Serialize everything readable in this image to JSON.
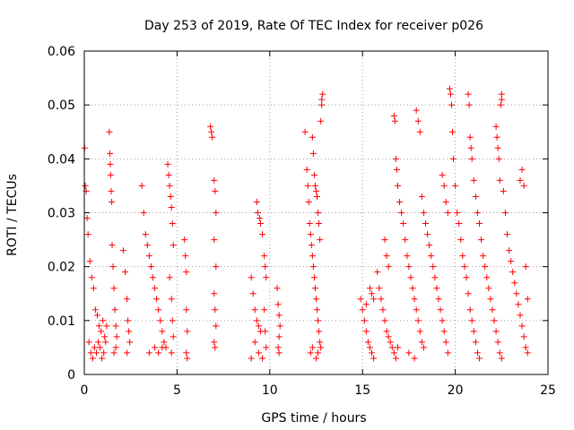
{
  "chart_data": {
    "type": "scatter",
    "title": "Day 253 of 2019, Rate Of TEC Index for receiver p026",
    "xlabel": "GPS time / hours",
    "ylabel": "ROTI / TECUs",
    "xlim": [
      0,
      25
    ],
    "ylim": [
      0,
      0.06
    ],
    "x_ticks": [
      0,
      5,
      10,
      15,
      20,
      25
    ],
    "x_tick_labels": [
      "0",
      "5",
      "10",
      "15",
      "20",
      "25"
    ],
    "y_ticks": [
      0,
      0.01,
      0.02,
      0.03,
      0.04,
      0.05,
      0.06
    ],
    "y_tick_labels": [
      "0",
      "0.01",
      "0.02",
      "0.03",
      "0.04",
      "0.05",
      "0.06"
    ],
    "grid": true,
    "marker": "+",
    "series_color": "#ff0000",
    "points": [
      [
        0.02,
        0.042
      ],
      [
        0.05,
        0.035
      ],
      [
        0.1,
        0.034
      ],
      [
        0.15,
        0.029
      ],
      [
        0.2,
        0.026
      ],
      [
        0.3,
        0.021
      ],
      [
        0.4,
        0.018
      ],
      [
        0.5,
        0.016
      ],
      [
        0.6,
        0.012
      ],
      [
        0.7,
        0.011
      ],
      [
        0.8,
        0.009
      ],
      [
        0.9,
        0.008
      ],
      [
        1.0,
        0.01
      ],
      [
        1.1,
        0.007
      ],
      [
        1.2,
        0.009
      ],
      [
        0.25,
        0.006
      ],
      [
        0.35,
        0.004
      ],
      [
        0.45,
        0.003
      ],
      [
        0.55,
        0.005
      ],
      [
        0.65,
        0.004
      ],
      [
        0.75,
        0.006
      ],
      [
        0.85,
        0.005
      ],
      [
        0.95,
        0.003
      ],
      [
        1.05,
        0.004
      ],
      [
        1.15,
        0.006
      ],
      [
        1.35,
        0.045
      ],
      [
        1.38,
        0.041
      ],
      [
        1.4,
        0.039
      ],
      [
        1.42,
        0.037
      ],
      [
        1.45,
        0.034
      ],
      [
        1.48,
        0.032
      ],
      [
        1.5,
        0.024
      ],
      [
        1.55,
        0.02
      ],
      [
        1.6,
        0.016
      ],
      [
        1.65,
        0.012
      ],
      [
        1.7,
        0.009
      ],
      [
        1.75,
        0.007
      ],
      [
        1.6,
        0.004
      ],
      [
        1.7,
        0.005
      ],
      [
        2.1,
        0.023
      ],
      [
        2.2,
        0.019
      ],
      [
        2.3,
        0.014
      ],
      [
        2.35,
        0.01
      ],
      [
        2.4,
        0.008
      ],
      [
        2.45,
        0.006
      ],
      [
        2.3,
        0.004
      ],
      [
        3.1,
        0.035
      ],
      [
        3.2,
        0.03
      ],
      [
        3.3,
        0.026
      ],
      [
        3.4,
        0.024
      ],
      [
        3.5,
        0.022
      ],
      [
        3.6,
        0.02
      ],
      [
        3.7,
        0.018
      ],
      [
        3.8,
        0.016
      ],
      [
        3.9,
        0.014
      ],
      [
        4.0,
        0.012
      ],
      [
        4.1,
        0.01
      ],
      [
        4.2,
        0.008
      ],
      [
        4.3,
        0.006
      ],
      [
        4.4,
        0.005
      ],
      [
        3.5,
        0.004
      ],
      [
        3.8,
        0.005
      ],
      [
        4.0,
        0.004
      ],
      [
        4.2,
        0.005
      ],
      [
        4.5,
        0.039
      ],
      [
        4.55,
        0.037
      ],
      [
        4.6,
        0.035
      ],
      [
        4.65,
        0.033
      ],
      [
        4.7,
        0.031
      ],
      [
        4.75,
        0.028
      ],
      [
        4.8,
        0.024
      ],
      [
        4.6,
        0.018
      ],
      [
        4.7,
        0.014
      ],
      [
        4.75,
        0.01
      ],
      [
        4.8,
        0.007
      ],
      [
        4.7,
        0.004
      ],
      [
        5.4,
        0.025
      ],
      [
        5.45,
        0.022
      ],
      [
        5.5,
        0.019
      ],
      [
        5.5,
        0.012
      ],
      [
        5.55,
        0.008
      ],
      [
        5.5,
        0.004
      ],
      [
        5.55,
        0.003
      ],
      [
        6.8,
        0.046
      ],
      [
        6.85,
        0.045
      ],
      [
        6.9,
        0.044
      ],
      [
        7.0,
        0.036
      ],
      [
        7.05,
        0.034
      ],
      [
        7.1,
        0.03
      ],
      [
        7.0,
        0.025
      ],
      [
        7.1,
        0.02
      ],
      [
        7.0,
        0.015
      ],
      [
        7.05,
        0.012
      ],
      [
        7.1,
        0.009
      ],
      [
        7.0,
        0.006
      ],
      [
        7.05,
        0.005
      ],
      [
        9.0,
        0.018
      ],
      [
        9.1,
        0.015
      ],
      [
        9.2,
        0.012
      ],
      [
        9.3,
        0.01
      ],
      [
        9.4,
        0.009
      ],
      [
        9.5,
        0.008
      ],
      [
        9.2,
        0.006
      ],
      [
        9.4,
        0.004
      ],
      [
        9.0,
        0.003
      ],
      [
        9.3,
        0.032
      ],
      [
        9.35,
        0.03
      ],
      [
        9.45,
        0.029
      ],
      [
        9.5,
        0.028
      ],
      [
        9.6,
        0.026
      ],
      [
        9.7,
        0.022
      ],
      [
        9.75,
        0.02
      ],
      [
        9.8,
        0.018
      ],
      [
        9.7,
        0.012
      ],
      [
        9.75,
        0.008
      ],
      [
        9.8,
        0.005
      ],
      [
        9.6,
        0.003
      ],
      [
        10.4,
        0.016
      ],
      [
        10.45,
        0.013
      ],
      [
        10.5,
        0.011
      ],
      [
        10.55,
        0.009
      ],
      [
        10.5,
        0.007
      ],
      [
        10.45,
        0.005
      ],
      [
        10.5,
        0.004
      ],
      [
        11.9,
        0.045
      ],
      [
        12.0,
        0.038
      ],
      [
        12.05,
        0.035
      ],
      [
        12.1,
        0.032
      ],
      [
        12.15,
        0.028
      ],
      [
        12.2,
        0.026
      ],
      [
        12.25,
        0.024
      ],
      [
        12.3,
        0.022
      ],
      [
        12.35,
        0.02
      ],
      [
        12.4,
        0.018
      ],
      [
        12.45,
        0.016
      ],
      [
        12.5,
        0.014
      ],
      [
        12.55,
        0.012
      ],
      [
        12.6,
        0.01
      ],
      [
        12.65,
        0.008
      ],
      [
        12.7,
        0.006
      ],
      [
        12.75,
        0.005
      ],
      [
        12.2,
        0.004
      ],
      [
        12.3,
        0.005
      ],
      [
        12.5,
        0.003
      ],
      [
        12.6,
        0.004
      ],
      [
        12.3,
        0.044
      ],
      [
        12.35,
        0.041
      ],
      [
        12.4,
        0.037
      ],
      [
        12.45,
        0.035
      ],
      [
        12.5,
        0.034
      ],
      [
        12.55,
        0.033
      ],
      [
        12.6,
        0.03
      ],
      [
        12.65,
        0.028
      ],
      [
        12.7,
        0.025
      ],
      [
        12.75,
        0.047
      ],
      [
        12.8,
        0.051
      ],
      [
        12.85,
        0.052
      ],
      [
        12.8,
        0.05
      ],
      [
        14.9,
        0.014
      ],
      [
        15.0,
        0.012
      ],
      [
        15.1,
        0.01
      ],
      [
        15.2,
        0.008
      ],
      [
        15.3,
        0.006
      ],
      [
        15.4,
        0.005
      ],
      [
        15.5,
        0.004
      ],
      [
        15.6,
        0.003
      ],
      [
        15.2,
        0.013
      ],
      [
        15.4,
        0.016
      ],
      [
        15.5,
        0.015
      ],
      [
        15.6,
        0.014
      ],
      [
        15.8,
        0.019
      ],
      [
        15.9,
        0.016
      ],
      [
        16.0,
        0.014
      ],
      [
        16.1,
        0.012
      ],
      [
        16.2,
        0.01
      ],
      [
        16.3,
        0.008
      ],
      [
        16.4,
        0.007
      ],
      [
        16.5,
        0.006
      ],
      [
        16.6,
        0.005
      ],
      [
        16.7,
        0.004
      ],
      [
        16.8,
        0.003
      ],
      [
        16.9,
        0.005
      ],
      [
        16.2,
        0.025
      ],
      [
        16.3,
        0.022
      ],
      [
        16.4,
        0.02
      ],
      [
        16.7,
        0.048
      ],
      [
        16.75,
        0.047
      ],
      [
        16.8,
        0.04
      ],
      [
        16.85,
        0.038
      ],
      [
        16.9,
        0.035
      ],
      [
        17.0,
        0.032
      ],
      [
        17.1,
        0.03
      ],
      [
        17.2,
        0.028
      ],
      [
        17.3,
        0.025
      ],
      [
        17.4,
        0.022
      ],
      [
        17.5,
        0.02
      ],
      [
        17.6,
        0.018
      ],
      [
        17.7,
        0.016
      ],
      [
        17.8,
        0.014
      ],
      [
        17.9,
        0.012
      ],
      [
        18.0,
        0.01
      ],
      [
        18.1,
        0.008
      ],
      [
        18.2,
        0.006
      ],
      [
        18.3,
        0.005
      ],
      [
        17.5,
        0.004
      ],
      [
        17.8,
        0.003
      ],
      [
        17.9,
        0.049
      ],
      [
        18.0,
        0.047
      ],
      [
        18.1,
        0.045
      ],
      [
        18.2,
        0.033
      ],
      [
        18.3,
        0.03
      ],
      [
        18.4,
        0.028
      ],
      [
        18.5,
        0.026
      ],
      [
        18.6,
        0.024
      ],
      [
        18.7,
        0.022
      ],
      [
        18.8,
        0.02
      ],
      [
        18.9,
        0.018
      ],
      [
        19.0,
        0.016
      ],
      [
        19.1,
        0.014
      ],
      [
        19.2,
        0.012
      ],
      [
        19.3,
        0.01
      ],
      [
        19.4,
        0.008
      ],
      [
        19.5,
        0.006
      ],
      [
        19.6,
        0.004
      ],
      [
        19.3,
        0.037
      ],
      [
        19.4,
        0.035
      ],
      [
        19.5,
        0.032
      ],
      [
        19.6,
        0.03
      ],
      [
        19.7,
        0.053
      ],
      [
        19.75,
        0.052
      ],
      [
        19.8,
        0.05
      ],
      [
        19.85,
        0.045
      ],
      [
        19.9,
        0.04
      ],
      [
        20.0,
        0.035
      ],
      [
        20.1,
        0.03
      ],
      [
        20.2,
        0.028
      ],
      [
        20.3,
        0.025
      ],
      [
        20.4,
        0.022
      ],
      [
        20.5,
        0.02
      ],
      [
        20.6,
        0.018
      ],
      [
        20.7,
        0.015
      ],
      [
        20.8,
        0.012
      ],
      [
        20.9,
        0.01
      ],
      [
        21.0,
        0.008
      ],
      [
        21.1,
        0.006
      ],
      [
        21.2,
        0.004
      ],
      [
        21.3,
        0.003
      ],
      [
        20.7,
        0.052
      ],
      [
        20.75,
        0.05
      ],
      [
        20.8,
        0.044
      ],
      [
        20.85,
        0.042
      ],
      [
        20.9,
        0.04
      ],
      [
        21.0,
        0.036
      ],
      [
        21.1,
        0.033
      ],
      [
        21.2,
        0.03
      ],
      [
        21.3,
        0.028
      ],
      [
        21.4,
        0.025
      ],
      [
        21.5,
        0.022
      ],
      [
        21.6,
        0.02
      ],
      [
        21.7,
        0.018
      ],
      [
        21.8,
        0.016
      ],
      [
        21.9,
        0.014
      ],
      [
        22.0,
        0.012
      ],
      [
        22.1,
        0.01
      ],
      [
        22.2,
        0.008
      ],
      [
        22.3,
        0.006
      ],
      [
        22.4,
        0.004
      ],
      [
        22.5,
        0.003
      ],
      [
        22.2,
        0.046
      ],
      [
        22.25,
        0.044
      ],
      [
        22.3,
        0.042
      ],
      [
        22.35,
        0.04
      ],
      [
        22.4,
        0.036
      ],
      [
        22.45,
        0.05
      ],
      [
        22.5,
        0.052
      ],
      [
        22.5,
        0.051
      ],
      [
        22.6,
        0.034
      ],
      [
        22.7,
        0.03
      ],
      [
        22.8,
        0.026
      ],
      [
        22.9,
        0.023
      ],
      [
        23.0,
        0.021
      ],
      [
        23.1,
        0.019
      ],
      [
        23.2,
        0.017
      ],
      [
        23.3,
        0.015
      ],
      [
        23.4,
        0.013
      ],
      [
        23.5,
        0.011
      ],
      [
        23.6,
        0.009
      ],
      [
        23.7,
        0.007
      ],
      [
        23.8,
        0.005
      ],
      [
        23.9,
        0.004
      ],
      [
        23.5,
        0.036
      ],
      [
        23.6,
        0.038
      ],
      [
        23.7,
        0.035
      ],
      [
        23.8,
        0.02
      ],
      [
        23.9,
        0.014
      ]
    ]
  }
}
